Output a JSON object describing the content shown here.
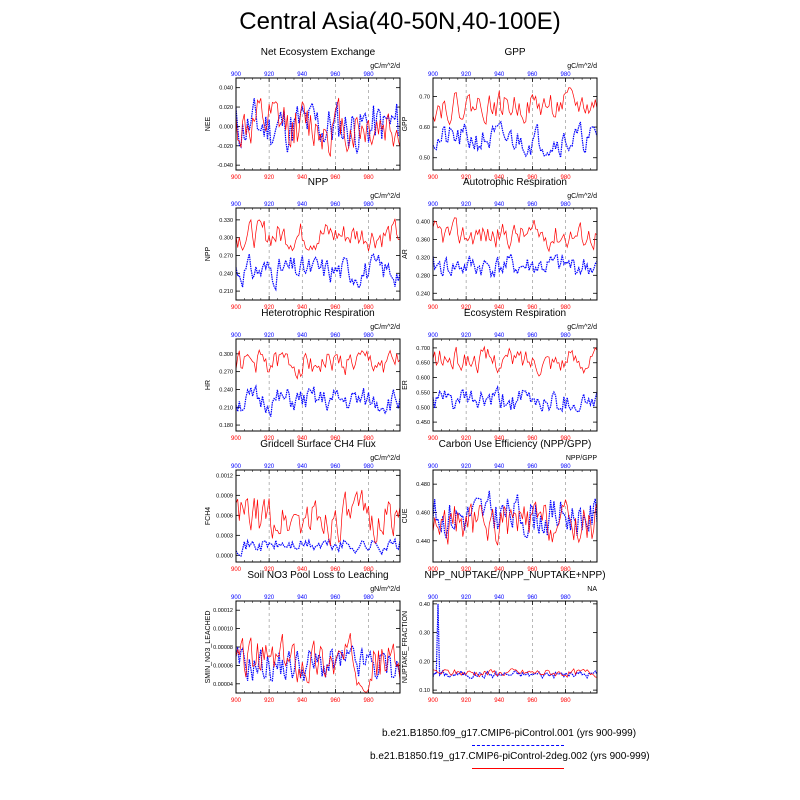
{
  "page_title": "Central Asia(40-50N,40-100E)",
  "colors": {
    "run1": "#0000ff",
    "run2": "#ff0000",
    "grid": "#888888"
  },
  "legend": [
    {
      "label": "b.e21.B1850.f09_g17.CMIP6-piControl.001 (yrs 900-999)",
      "color": "#0000ff",
      "style": "dashed"
    },
    {
      "label": "b.e21.B1850.f19_g17.CMIP6-piControl-2deg.002 (yrs 900-999)",
      "color": "#ff0000",
      "style": "solid"
    }
  ],
  "top_axis_ticks": [
    "900",
    "920",
    "940",
    "960",
    "980"
  ],
  "bottom_axis_ticks": [
    "900",
    "920",
    "940",
    "960",
    "980"
  ],
  "chart_data": [
    {
      "type": "line",
      "title": "Net Ecosystem Exchange",
      "units": "gC/m^2/d",
      "ylabel": "NEE",
      "ylim": [
        -0.045,
        0.05
      ],
      "yticks": [
        "0.040",
        "0.020",
        "0.000",
        "-0.020",
        "-0.040"
      ],
      "ytick_values": [
        0.04,
        0.02,
        0.0,
        -0.02,
        -0.04
      ],
      "xlim": [
        900,
        999
      ],
      "series": [
        {
          "mean": 0.0,
          "amp": 0.02,
          "seed": 11
        },
        {
          "mean": 0.0,
          "amp": 0.02,
          "seed": 12
        }
      ]
    },
    {
      "type": "line",
      "title": "GPP",
      "units": "gC/m^2/d",
      "ylabel": "GPP",
      "ylim": [
        0.46,
        0.76
      ],
      "yticks": [
        "0.70",
        "0.60",
        "0.50"
      ],
      "ytick_values": [
        0.7,
        0.6,
        0.5
      ],
      "xlim": [
        900,
        999
      ],
      "series": [
        {
          "mean": 0.56,
          "amp": 0.035,
          "seed": 21
        },
        {
          "mean": 0.67,
          "amp": 0.035,
          "seed": 22
        }
      ]
    },
    {
      "type": "line",
      "title": "NPP",
      "units": "gC/m^2/d",
      "ylabel": "NPP",
      "ylim": [
        0.195,
        0.35
      ],
      "yticks": [
        "0.330",
        "0.300",
        "0.270",
        "0.240",
        "0.210"
      ],
      "ytick_values": [
        0.33,
        0.3,
        0.27,
        0.24,
        0.21
      ],
      "xlim": [
        900,
        999
      ],
      "series": [
        {
          "mean": 0.245,
          "amp": 0.018,
          "seed": 31
        },
        {
          "mean": 0.305,
          "amp": 0.018,
          "seed": 32
        }
      ]
    },
    {
      "type": "line",
      "title": "Autotrophic Respiration",
      "units": "gC/m^2/d",
      "ylabel": "AR",
      "ylim": [
        0.225,
        0.43
      ],
      "yticks": [
        "0.400",
        "0.360",
        "0.320",
        "0.280",
        "0.240"
      ],
      "ytick_values": [
        0.4,
        0.36,
        0.32,
        0.28,
        0.24
      ],
      "xlim": [
        900,
        999
      ],
      "series": [
        {
          "mean": 0.3,
          "amp": 0.02,
          "seed": 41
        },
        {
          "mean": 0.37,
          "amp": 0.022,
          "seed": 42
        }
      ]
    },
    {
      "type": "line",
      "title": "Heterotrophic Respiration",
      "units": "gC/m^2/d",
      "ylabel": "HR",
      "ylim": [
        0.17,
        0.325
      ],
      "yticks": [
        "0.300",
        "0.270",
        "0.240",
        "0.210",
        "0.180"
      ],
      "ytick_values": [
        0.3,
        0.27,
        0.24,
        0.21,
        0.18
      ],
      "xlim": [
        900,
        999
      ],
      "series": [
        {
          "mean": 0.22,
          "amp": 0.016,
          "seed": 51
        },
        {
          "mean": 0.285,
          "amp": 0.016,
          "seed": 52
        }
      ]
    },
    {
      "type": "line",
      "title": "Ecosystem Respiration",
      "units": "gC/m^2/d",
      "ylabel": "ER",
      "ylim": [
        0.42,
        0.73
      ],
      "yticks": [
        "0.700",
        "0.650",
        "0.600",
        "0.550",
        "0.500",
        "0.450"
      ],
      "ytick_values": [
        0.7,
        0.65,
        0.6,
        0.55,
        0.5,
        0.45
      ],
      "xlim": [
        900,
        999
      ],
      "series": [
        {
          "mean": 0.52,
          "amp": 0.03,
          "seed": 61
        },
        {
          "mean": 0.66,
          "amp": 0.03,
          "seed": 62
        }
      ]
    },
    {
      "type": "line",
      "title": "Gridcell Surface CH4 Flux",
      "units": "gC/m^2/d",
      "ylabel": "FCH4",
      "ylim": [
        -0.0001,
        0.00128
      ],
      "yticks": [
        "0.0012",
        "0.0009",
        "0.0006",
        "0.0003",
        "0.0000"
      ],
      "ytick_values": [
        0.0012,
        0.0009,
        0.0006,
        0.0003,
        0.0
      ],
      "xlim": [
        900,
        999
      ],
      "series": [
        {
          "mean": 0.00015,
          "amp": 8e-05,
          "seed": 71
        },
        {
          "mean": 0.00055,
          "amp": 0.00025,
          "seed": 72
        }
      ]
    },
    {
      "type": "line",
      "title": "Carbon Use Efficiency (NPP/GPP)",
      "units": "NPP/GPP",
      "ylabel": "CUE",
      "ylim": [
        0.425,
        0.49
      ],
      "yticks": [
        "0.480",
        "0.460",
        "0.440"
      ],
      "ytick_values": [
        0.48,
        0.46,
        0.44
      ],
      "xlim": [
        900,
        999
      ],
      "series": [
        {
          "mean": 0.458,
          "amp": 0.011,
          "seed": 81
        },
        {
          "mean": 0.452,
          "amp": 0.011,
          "seed": 82
        }
      ]
    },
    {
      "type": "line",
      "title": "Soil NO3 Pool Loss to Leaching",
      "units": "gN/m^2/d",
      "ylabel": "SMIN_NO3_LEACHED",
      "ylim": [
        3e-05,
        0.00013
      ],
      "yticks": [
        "0.00012",
        "0.00010",
        "0.00008",
        "0.00006",
        "0.00004"
      ],
      "ytick_values": [
        0.00012,
        0.0001,
        8e-05,
        6e-05,
        4e-05
      ],
      "xlim": [
        900,
        999
      ],
      "series": [
        {
          "mean": 6e-05,
          "amp": 1.5e-05,
          "seed": 91
        },
        {
          "mean": 6.5e-05,
          "amp": 1.8e-05,
          "seed": 92
        }
      ]
    },
    {
      "type": "line",
      "title": "NPP_NUPTAKE/(NPP_NUPTAKE+NPP)",
      "units": "NA",
      "ylabel": "NUPTAKE_FRACTION",
      "ylim": [
        0.09,
        0.41
      ],
      "yticks": [
        "0.40",
        "0.30",
        "0.20",
        "0.10"
      ],
      "ytick_values": [
        0.4,
        0.3,
        0.2,
        0.1
      ],
      "xlim": [
        900,
        999
      ],
      "series": [
        {
          "mean": 0.155,
          "amp": 0.01,
          "seed": 101,
          "spike_index": 3,
          "spike_value": 0.4
        },
        {
          "mean": 0.16,
          "amp": 0.01,
          "seed": 102
        }
      ]
    }
  ]
}
